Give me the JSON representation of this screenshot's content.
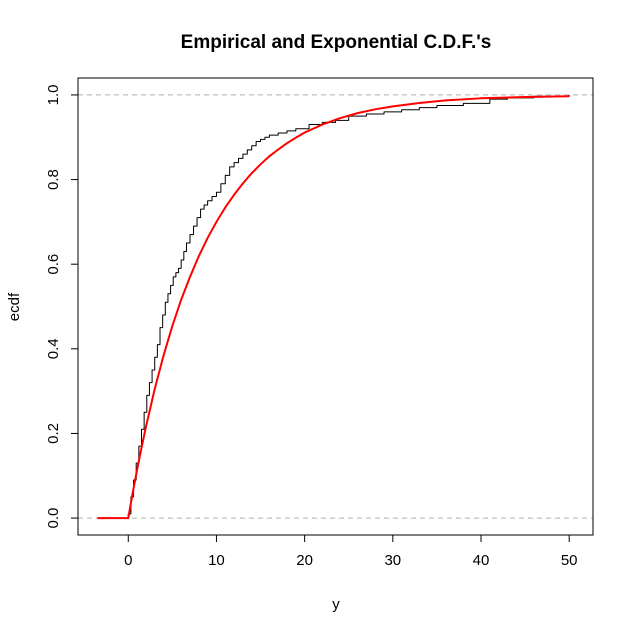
{
  "chart_data": {
    "type": "line",
    "title": "Empirical and Exponential C.D.F.'s",
    "xlabel": "y",
    "ylabel": "ecdf",
    "xlim": [
      -5.7,
      52.7
    ],
    "ylim": [
      -0.04,
      1.04
    ],
    "xticks": [
      0,
      10,
      20,
      30,
      40,
      50
    ],
    "yticks": [
      0.0,
      0.2,
      0.4,
      0.6,
      0.8,
      1.0
    ],
    "xtick_labels": [
      "0",
      "10",
      "20",
      "30",
      "40",
      "50"
    ],
    "ytick_labels": [
      "0.0",
      "0.2",
      "0.4",
      "0.6",
      "0.8",
      "1.0"
    ],
    "reference_lines": [
      0,
      1
    ],
    "grid": false,
    "legend": false,
    "series": [
      {
        "style": "step",
        "color": "#000000",
        "x": [
          -3.5,
          0.0,
          0.3,
          0.6,
          0.9,
          1.2,
          1.5,
          1.8,
          2.1,
          2.4,
          2.7,
          3.0,
          3.3,
          3.6,
          3.9,
          4.2,
          4.5,
          4.8,
          5.1,
          5.4,
          5.7,
          6.0,
          6.3,
          6.6,
          7.0,
          7.4,
          7.8,
          8.2,
          8.6,
          9.0,
          9.5,
          10.0,
          10.5,
          11.0,
          11.5,
          12.0,
          12.5,
          13.0,
          13.5,
          14.0,
          14.5,
          15.0,
          15.5,
          16.0,
          17.0,
          18.0,
          19.0,
          20.5,
          22.0,
          23.5,
          25.0,
          27.0,
          29.0,
          31.0,
          33.0,
          35.0,
          38.0,
          41.0,
          43.0,
          46.0,
          50.0
        ],
        "y": [
          0.0,
          0.01,
          0.05,
          0.09,
          0.13,
          0.17,
          0.21,
          0.25,
          0.29,
          0.32,
          0.35,
          0.38,
          0.41,
          0.45,
          0.48,
          0.51,
          0.53,
          0.55,
          0.57,
          0.58,
          0.59,
          0.61,
          0.63,
          0.65,
          0.67,
          0.69,
          0.71,
          0.73,
          0.74,
          0.75,
          0.76,
          0.77,
          0.79,
          0.81,
          0.83,
          0.84,
          0.85,
          0.86,
          0.87,
          0.88,
          0.89,
          0.895,
          0.9,
          0.905,
          0.91,
          0.915,
          0.92,
          0.93,
          0.935,
          0.94,
          0.95,
          0.955,
          0.96,
          0.965,
          0.97,
          0.975,
          0.98,
          0.99,
          0.993,
          0.997,
          1.0
        ]
      },
      {
        "style": "line",
        "color": "#ff0000",
        "x": [
          -3.5,
          0.0,
          0.5,
          1.0,
          1.5,
          2,
          3,
          4,
          5,
          6,
          7,
          8,
          9,
          10,
          11,
          12,
          13,
          14,
          15,
          16,
          17,
          18,
          19,
          20,
          22,
          24,
          26,
          28,
          30,
          33,
          36,
          40,
          45,
          50
        ],
        "y": [
          0.0,
          0.0,
          0.059,
          0.114,
          0.166,
          0.215,
          0.305,
          0.384,
          0.454,
          0.516,
          0.57,
          0.619,
          0.662,
          0.7,
          0.734,
          0.764,
          0.791,
          0.815,
          0.836,
          0.855,
          0.871,
          0.886,
          0.899,
          0.911,
          0.93,
          0.945,
          0.957,
          0.966,
          0.973,
          0.981,
          0.987,
          0.992,
          0.995,
          0.997
        ]
      }
    ]
  }
}
